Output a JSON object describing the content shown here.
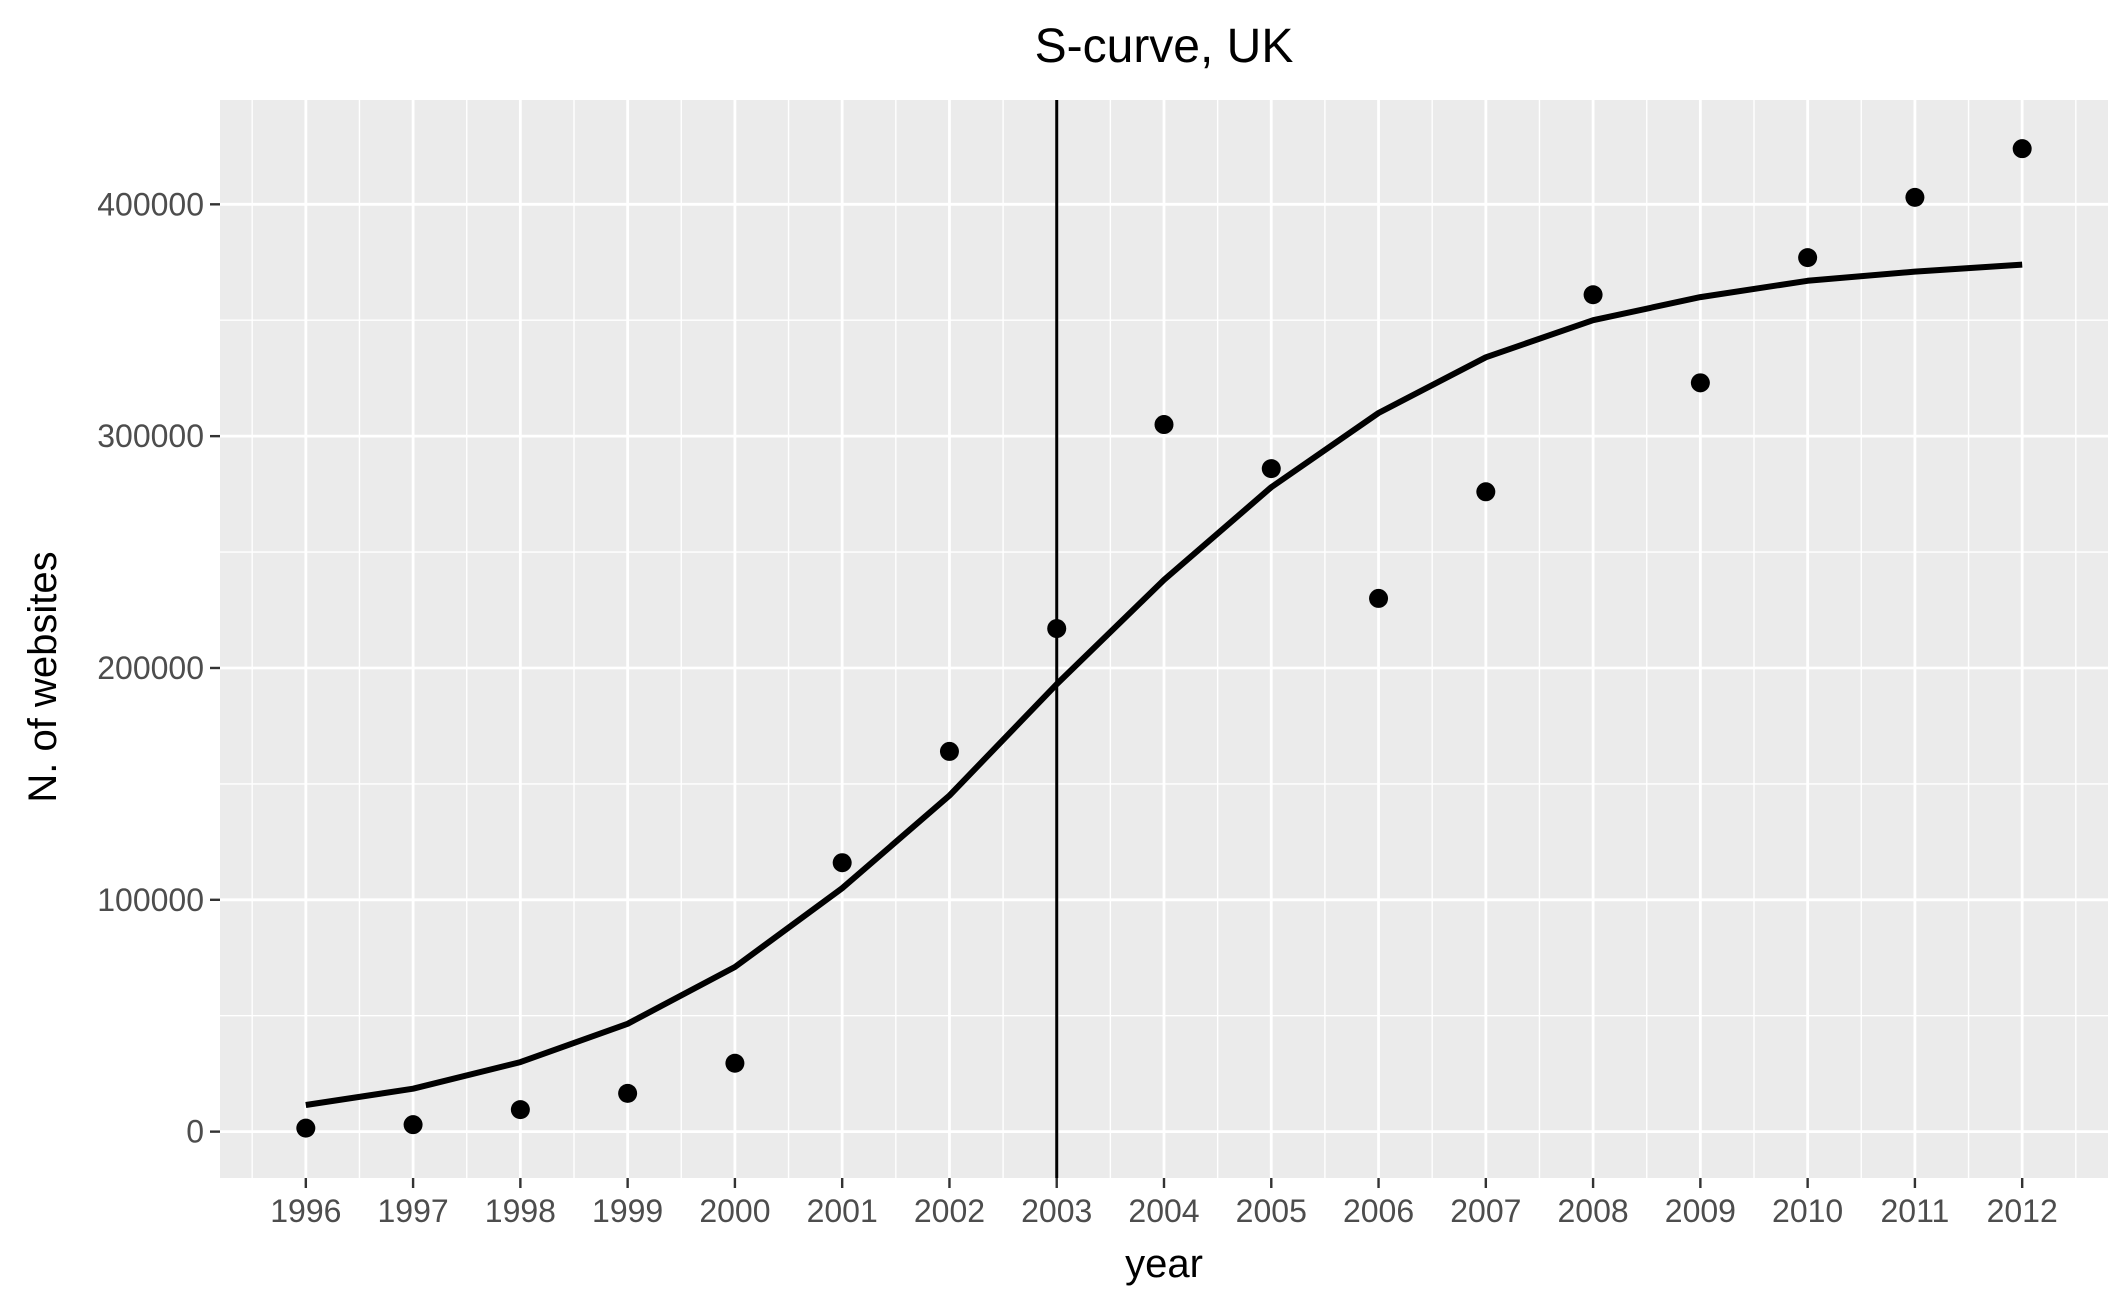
{
  "chart_data": {
    "type": "scatter",
    "title": "S-curve, UK",
    "xlabel": "year",
    "ylabel": "N. of websites",
    "x": [
      1996,
      1997,
      1998,
      1999,
      2000,
      2001,
      2002,
      2003,
      2004,
      2005,
      2006,
      2007,
      2008,
      2009,
      2010,
      2011,
      2012
    ],
    "x_tick_labels": [
      "1996",
      "1997",
      "1998",
      "1999",
      "2000",
      "2001",
      "2002",
      "2003",
      "2004",
      "2005",
      "2006",
      "2007",
      "2008",
      "2009",
      "2010",
      "2011",
      "2012"
    ],
    "y_ticks": [
      0,
      100000,
      200000,
      300000,
      400000
    ],
    "y_tick_labels": [
      "0",
      "100000",
      "200000",
      "300000",
      "400000"
    ],
    "xlim": [
      1995.2,
      2012.8
    ],
    "ylim": [
      -20000,
      445000
    ],
    "grid": true,
    "series": [
      {
        "kind": "points",
        "color": "#000000",
        "values": [
          1500,
          3000,
          9500,
          16500,
          29500,
          116000,
          164000,
          217000,
          305000,
          286000,
          230000,
          276000,
          361000,
          323000,
          377000,
          403000,
          424000
        ]
      },
      {
        "kind": "fitted-line",
        "color": "#000000",
        "values": [
          11500,
          18500,
          30000,
          46500,
          71000,
          105000,
          145000,
          193000,
          238000,
          278000,
          310000,
          334000,
          350000,
          360000,
          367000,
          371000,
          374000
        ]
      }
    ],
    "reference_lines": [
      {
        "orientation": "vertical",
        "x": 2003,
        "color": "#000000"
      }
    ]
  }
}
